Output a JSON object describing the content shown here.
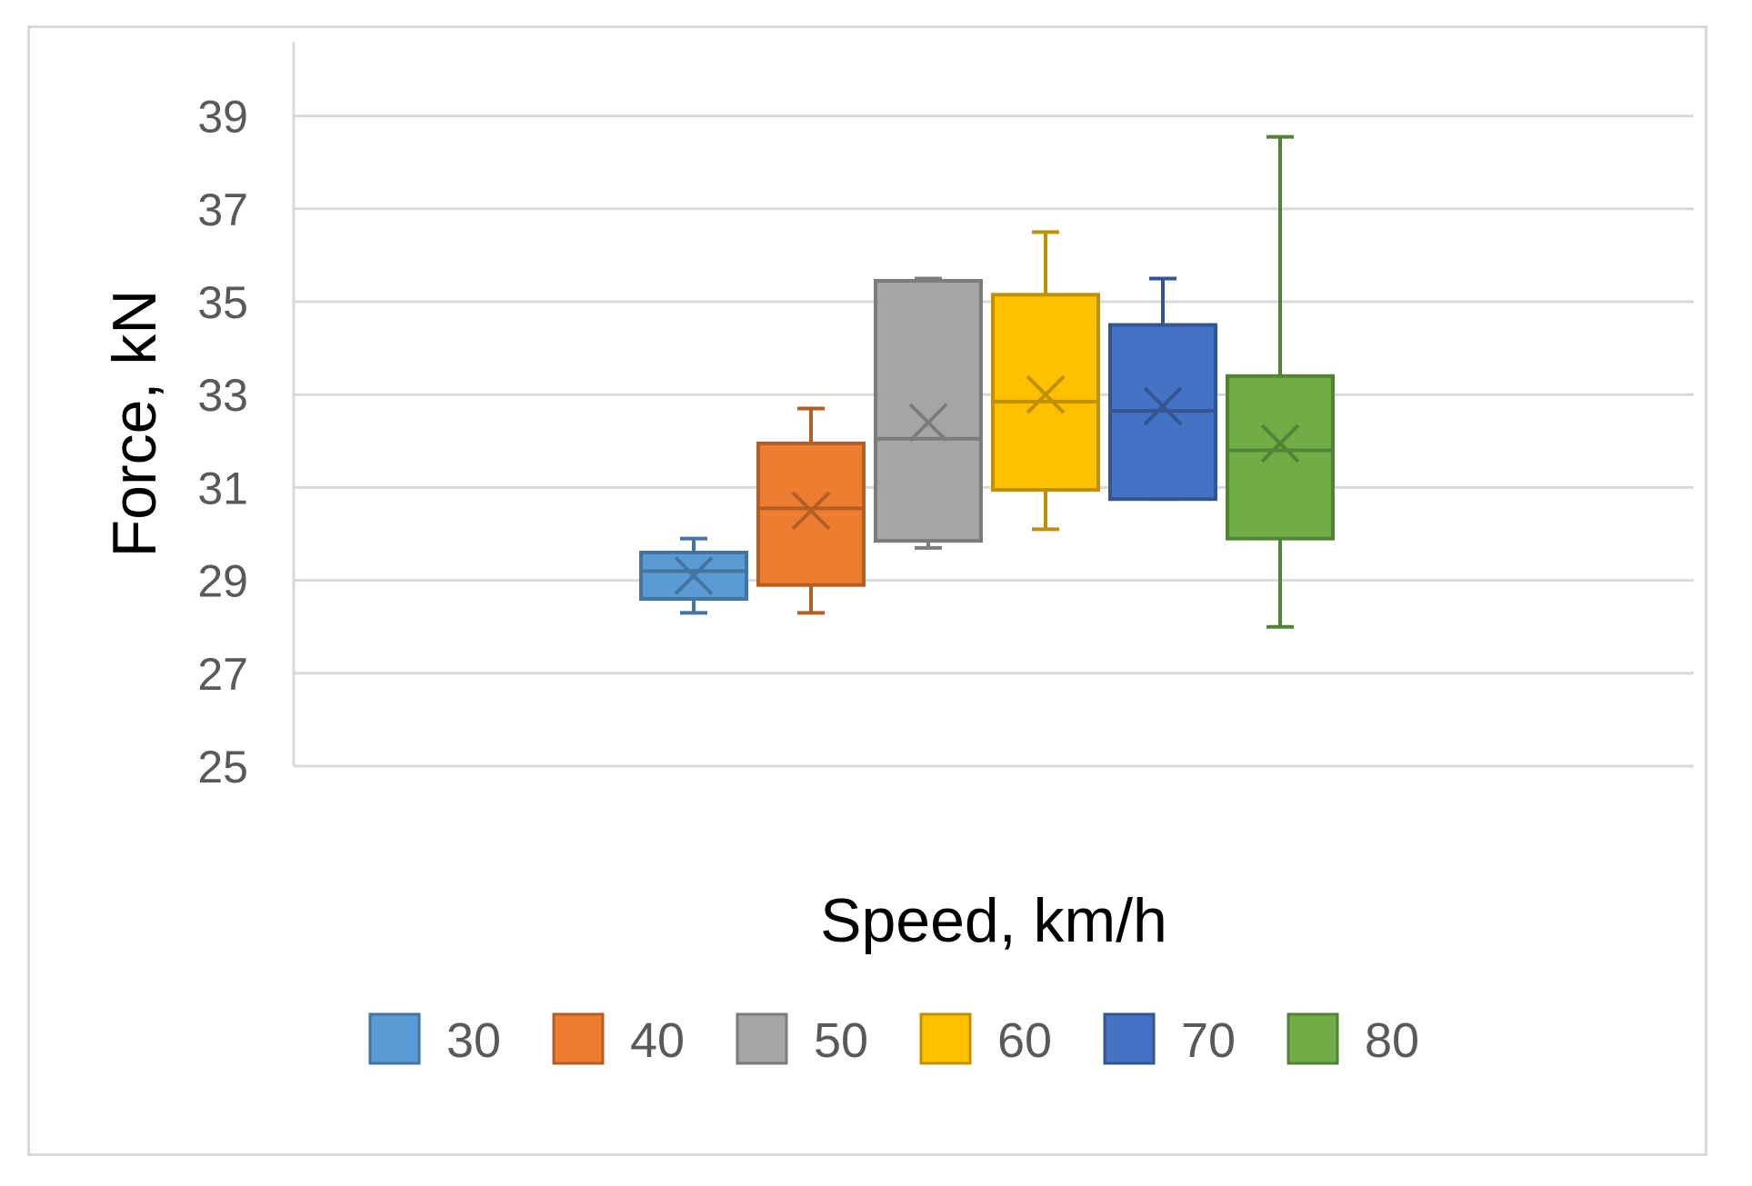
{
  "chart_data": {
    "type": "box",
    "title": "",
    "xlabel": "Speed, km/h",
    "ylabel": "Force, kN",
    "ylim": [
      25,
      40
    ],
    "yticks": [
      "25",
      "27",
      "29",
      "31",
      "33",
      "35",
      "37",
      "39"
    ],
    "grid": true,
    "legend_position": "bottom",
    "series": [
      {
        "name": "30",
        "color": "#5b9bd5",
        "min": 28.3,
        "q1": 28.6,
        "median": 29.2,
        "q3": 29.6,
        "max": 29.9,
        "mean": 29.1
      },
      {
        "name": "40",
        "color": "#ed7d31",
        "min": 28.3,
        "q1": 28.9,
        "median": 30.55,
        "q3": 31.95,
        "max": 32.7,
        "mean": 30.5
      },
      {
        "name": "50",
        "color": "#a5a5a5",
        "min": 29.7,
        "q1": 29.85,
        "median": 32.05,
        "q3": 35.45,
        "max": 35.5,
        "mean": 32.4
      },
      {
        "name": "60",
        "color": "#ffc000",
        "min": 30.1,
        "q1": 30.95,
        "median": 32.85,
        "q3": 35.15,
        "max": 36.5,
        "mean": 33.0
      },
      {
        "name": "70",
        "color": "#4472c4",
        "min": 30.75,
        "q1": 30.75,
        "median": 32.65,
        "q3": 34.5,
        "max": 35.5,
        "mean": 32.75
      },
      {
        "name": "80",
        "color": "#70ad47",
        "min": 28.0,
        "q1": 29.9,
        "median": 31.8,
        "q3": 33.4,
        "max": 38.55,
        "mean": 31.95
      }
    ]
  }
}
